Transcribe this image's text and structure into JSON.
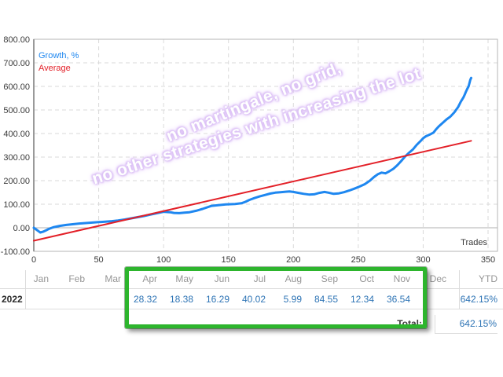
{
  "report": {
    "legend": {
      "growth_label": "Growth, %",
      "average_label": "Average"
    },
    "axis_title": "Trades",
    "watermark": {
      "line1": "no martingale, no grid,",
      "line2": "no other strategies with increasing the lot",
      "color": "#cfaaf0"
    },
    "colors": {
      "growth_line": "#1e87f0",
      "average_line": "#e32028",
      "value_text": "#2e74b5",
      "month_text": "#969696",
      "highlight_box": "#2db52d"
    },
    "table": {
      "year": "2022",
      "columns": [
        "Jan",
        "Feb",
        "Mar",
        "Apr",
        "May",
        "Jun",
        "Jul",
        "Aug",
        "Sep",
        "Oct",
        "Nov",
        "Dec"
      ],
      "values": [
        "",
        "",
        "",
        "28.32",
        "18.38",
        "16.29",
        "40.02",
        "5.99",
        "84.55",
        "12.34",
        "36.54",
        ""
      ],
      "ytd_label": "YTD",
      "ytd_value": "642.15%",
      "total_label": "Total:",
      "total_value": "642.15%",
      "highlight_range": "Apr-Nov"
    }
  },
  "chart_data": {
    "type": "line",
    "xlabel": "Trades",
    "ylabel": "Growth, %",
    "xlim": [
      0,
      350
    ],
    "ylim": [
      -100,
      800
    ],
    "x_ticks": [
      0,
      50,
      100,
      150,
      200,
      250,
      300,
      350
    ],
    "y_ticks": [
      "800.00",
      "700.00",
      "600.00",
      "500.00",
      "400.00",
      "300.00",
      "200.00",
      "100.00",
      "0.00",
      "-100.00"
    ],
    "grid": true,
    "legend_position": "top-left",
    "series": [
      {
        "id": "growth",
        "name": "Growth, %",
        "color": "#1e87f0",
        "width": 3,
        "points": [
          [
            0,
            0
          ],
          [
            2,
            -8
          ],
          [
            4,
            -16
          ],
          [
            5,
            -20
          ],
          [
            7,
            -17
          ],
          [
            9,
            -12
          ],
          [
            12,
            -4
          ],
          [
            15,
            2
          ],
          [
            20,
            8
          ],
          [
            25,
            12
          ],
          [
            30,
            15
          ],
          [
            35,
            18
          ],
          [
            40,
            20
          ],
          [
            45,
            22
          ],
          [
            50,
            24
          ],
          [
            55,
            26
          ],
          [
            60,
            28
          ],
          [
            65,
            31
          ],
          [
            70,
            35
          ],
          [
            75,
            40
          ],
          [
            80,
            45
          ],
          [
            85,
            50
          ],
          [
            90,
            56
          ],
          [
            95,
            62
          ],
          [
            100,
            68
          ],
          [
            105,
            66
          ],
          [
            108,
            63
          ],
          [
            112,
            62
          ],
          [
            116,
            64
          ],
          [
            120,
            66
          ],
          [
            125,
            72
          ],
          [
            130,
            80
          ],
          [
            137,
            93
          ],
          [
            142,
            96
          ],
          [
            148,
            99
          ],
          [
            155,
            101
          ],
          [
            160,
            104
          ],
          [
            163,
            110
          ],
          [
            166,
            118
          ],
          [
            170,
            126
          ],
          [
            174,
            133
          ],
          [
            178,
            139
          ],
          [
            182,
            145
          ],
          [
            186,
            149
          ],
          [
            190,
            151
          ],
          [
            194,
            153
          ],
          [
            197,
            154
          ],
          [
            200,
            152
          ],
          [
            204,
            148
          ],
          [
            208,
            144
          ],
          [
            212,
            141
          ],
          [
            216,
            142
          ],
          [
            220,
            148
          ],
          [
            224,
            152
          ],
          [
            227,
            149
          ],
          [
            231,
            144
          ],
          [
            235,
            146
          ],
          [
            239,
            151
          ],
          [
            243,
            158
          ],
          [
            247,
            166
          ],
          [
            251,
            175
          ],
          [
            255,
            185
          ],
          [
            259,
            200
          ],
          [
            262,
            215
          ],
          [
            265,
            227
          ],
          [
            268,
            234
          ],
          [
            271,
            231
          ],
          [
            274,
            240
          ],
          [
            277,
            250
          ],
          [
            280,
            265
          ],
          [
            283,
            283
          ],
          [
            286,
            302
          ],
          [
            289,
            318
          ],
          [
            292,
            332
          ],
          [
            295,
            352
          ],
          [
            298,
            368
          ],
          [
            300,
            380
          ],
          [
            302,
            388
          ],
          [
            304,
            393
          ],
          [
            306,
            398
          ],
          [
            308,
            404
          ],
          [
            310,
            418
          ],
          [
            312,
            430
          ],
          [
            315,
            445
          ],
          [
            318,
            460
          ],
          [
            321,
            472
          ],
          [
            324,
            490
          ],
          [
            327,
            513
          ],
          [
            329,
            535
          ],
          [
            331,
            553
          ],
          [
            332,
            565
          ],
          [
            333,
            578
          ],
          [
            334,
            590
          ],
          [
            335,
            600
          ],
          [
            335.7,
            615
          ],
          [
            336.3,
            628
          ],
          [
            337,
            636
          ]
        ]
      },
      {
        "id": "average",
        "name": "Average",
        "color": "#e32028",
        "width": 2,
        "points": [
          [
            0,
            -55
          ],
          [
            337,
            369
          ]
        ]
      }
    ]
  }
}
